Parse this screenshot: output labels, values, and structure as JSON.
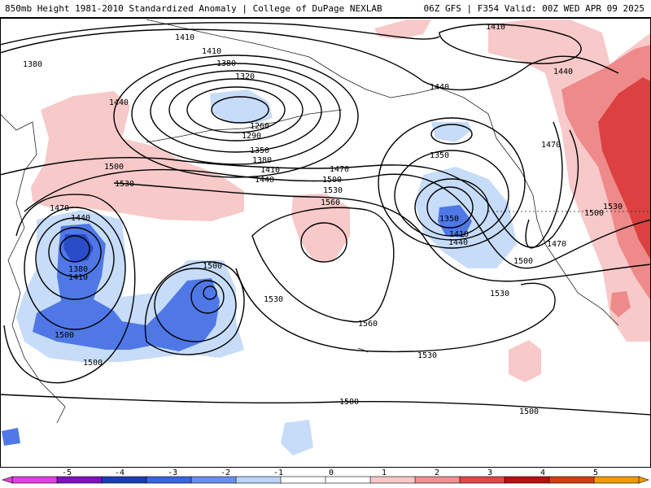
{
  "header": {
    "title_left": "850mb Height 1981-2010 Standardized Anomaly | College of DuPage NEXLAB",
    "title_right": "06Z GFS | F354 Valid: 00Z WED APR 09 2025"
  },
  "contour_labels": [
    "1380",
    "1410",
    "1410",
    "1380",
    "1320",
    "1260",
    "1290",
    "1350",
    "1410",
    "1440",
    "1410",
    "1380",
    "1440",
    "1470",
    "1350",
    "1440",
    "1500",
    "1530",
    "1470",
    "1500",
    "1530",
    "1560",
    "1350",
    "1410",
    "1440",
    "1500",
    "1470",
    "1440",
    "1380",
    "1410",
    "1500",
    "1530",
    "1500",
    "1560",
    "1500",
    "1530",
    "1530",
    "1500",
    "1500",
    "1470",
    "1530",
    "1500",
    "1440"
  ],
  "colorbar": {
    "tick_labels": [
      "-5",
      "-4",
      "-3",
      "-2",
      "-1",
      "0",
      "1",
      "2",
      "3",
      "4",
      "5"
    ],
    "colors": [
      "#e040e0",
      "#8010c0",
      "#1a3fb0",
      "#3a64e0",
      "#6a8ff0",
      "#b8d4f8",
      "#ffffff",
      "#ffffff",
      "#f8c8c8",
      "#f09090",
      "#e04848",
      "#b81010",
      "#d04010",
      "#f09a00"
    ]
  },
  "colors": {
    "anomaly_neg_light": "#c6dcf8",
    "anomaly_neg_mid": "#4f78e6",
    "anomaly_neg_dark": "#2a4cc8",
    "anomaly_pos_light": "#f7c9c9",
    "anomaly_pos_mid": "#ee8a8a",
    "anomaly_pos_dark": "#dc4040"
  }
}
